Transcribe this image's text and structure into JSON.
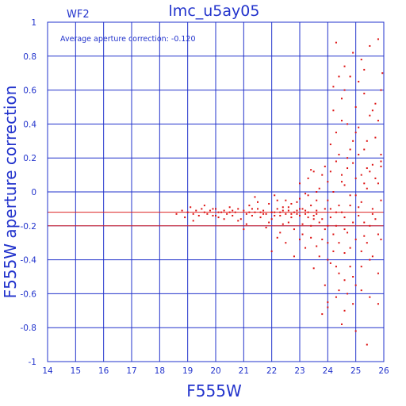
{
  "chart_data": {
    "type": "scatter",
    "title": "lmc_u5ay05",
    "chip_label": "WF2",
    "annotation": "Average aperture correction: -0.120",
    "xlabel": "F555W",
    "ylabel": "F555W aperture correction",
    "xlim": [
      14,
      26
    ],
    "ylim": [
      -1,
      1
    ],
    "xticks": [
      "14",
      "15",
      "16",
      "17",
      "18",
      "19",
      "20",
      "21",
      "22",
      "23",
      "24",
      "25",
      "26"
    ],
    "yticks": [
      "-1",
      "-0.8",
      "-0.6",
      "-0.4",
      "-0.2",
      "0",
      "0.2",
      "0.4",
      "0.6",
      "0.8",
      "1"
    ],
    "grid": true,
    "reference_lines": [
      {
        "name": "average",
        "y": -0.12,
        "color": "#dd2222"
      },
      {
        "name": "baseline",
        "y": -0.2,
        "color": "#dd2222"
      }
    ],
    "colors": {
      "axes": "#2233cc",
      "points": "#dd1111",
      "grid": "#2233cc",
      "average_line": "#dd2222"
    },
    "points": [
      [
        18.6,
        -0.13
      ],
      [
        18.8,
        -0.11
      ],
      [
        18.9,
        -0.15
      ],
      [
        19.0,
        -0.12
      ],
      [
        19.1,
        -0.09
      ],
      [
        19.2,
        -0.13
      ],
      [
        19.3,
        -0.11
      ],
      [
        19.4,
        -0.14
      ],
      [
        19.5,
        -0.1
      ],
      [
        19.6,
        -0.12
      ],
      [
        19.7,
        -0.13
      ],
      [
        19.8,
        -0.11
      ],
      [
        19.9,
        -0.14
      ],
      [
        20.0,
        -0.1
      ],
      [
        20.1,
        -0.15
      ],
      [
        20.2,
        -0.12
      ],
      [
        20.3,
        -0.11
      ],
      [
        20.4,
        -0.13
      ],
      [
        20.5,
        -0.09
      ],
      [
        20.6,
        -0.14
      ],
      [
        20.7,
        -0.12
      ],
      [
        20.8,
        -0.1
      ],
      [
        20.9,
        -0.16
      ],
      [
        21.0,
        -0.11
      ],
      [
        21.1,
        -0.13
      ],
      [
        21.2,
        -0.08
      ],
      [
        21.3,
        -0.14
      ],
      [
        21.4,
        -0.12
      ],
      [
        21.5,
        -0.1
      ],
      [
        21.6,
        -0.15
      ],
      [
        21.7,
        -0.11
      ],
      [
        21.8,
        -0.13
      ],
      [
        21.9,
        -0.07
      ],
      [
        22.0,
        -0.16
      ],
      [
        22.1,
        -0.12
      ],
      [
        22.2,
        -0.1
      ],
      [
        22.3,
        -0.14
      ],
      [
        22.4,
        -0.11
      ],
      [
        22.5,
        -0.13
      ],
      [
        22.6,
        -0.09
      ],
      [
        22.7,
        -0.15
      ],
      [
        22.8,
        -0.12
      ],
      [
        22.9,
        -0.11
      ],
      [
        23.0,
        -0.14
      ],
      [
        23.1,
        -0.1
      ],
      [
        23.2,
        -0.13
      ],
      [
        23.3,
        -0.12
      ],
      [
        23.4,
        -0.08
      ],
      [
        23.5,
        -0.16
      ],
      [
        23.6,
        -0.11
      ],
      [
        19.2,
        -0.17
      ],
      [
        19.6,
        -0.08
      ],
      [
        20.3,
        -0.16
      ],
      [
        20.8,
        -0.17
      ],
      [
        21.1,
        -0.19
      ],
      [
        21.5,
        -0.06
      ],
      [
        21.9,
        -0.18
      ],
      [
        22.2,
        -0.05
      ],
      [
        22.4,
        -0.19
      ],
      [
        22.7,
        -0.07
      ],
      [
        20.5,
        -0.12
      ],
      [
        19.9,
        -0.1
      ],
      [
        20.1,
        -0.12
      ],
      [
        21.3,
        -0.1
      ],
      [
        21.7,
        -0.13
      ],
      [
        22.0,
        -0.12
      ],
      [
        22.3,
        -0.12
      ],
      [
        22.6,
        -0.11
      ],
      [
        22.9,
        -0.13
      ],
      [
        23.2,
        -0.11
      ],
      [
        21.0,
        -0.22
      ],
      [
        21.4,
        -0.03
      ],
      [
        21.8,
        -0.21
      ],
      [
        22.1,
        -0.02
      ],
      [
        22.3,
        -0.24
      ],
      [
        22.5,
        -0.05
      ],
      [
        22.8,
        -0.22
      ],
      [
        23.0,
        -0.04
      ],
      [
        23.1,
        -0.25
      ],
      [
        23.3,
        -0.02
      ],
      [
        22.0,
        -0.35
      ],
      [
        22.2,
        -0.27
      ],
      [
        22.5,
        -0.3
      ],
      [
        22.8,
        -0.38
      ],
      [
        23.0,
        -0.28
      ],
      [
        23.2,
        -0.33
      ],
      [
        23.4,
        -0.27
      ],
      [
        23.6,
        -0.32
      ],
      [
        23.8,
        -0.28
      ],
      [
        24.0,
        -0.3
      ],
      [
        23.0,
        0.05
      ],
      [
        23.3,
        0.08
      ],
      [
        23.5,
        0.12
      ],
      [
        23.7,
        0.02
      ],
      [
        23.9,
        0.15
      ],
      [
        24.0,
        0.06
      ],
      [
        23.4,
        0.13
      ],
      [
        23.8,
        0.1
      ],
      [
        23.6,
        0.0
      ],
      [
        23.2,
        -0.01
      ],
      [
        23.5,
        -0.45
      ],
      [
        23.7,
        -0.38
      ],
      [
        23.9,
        -0.55
      ],
      [
        24.1,
        -0.42
      ],
      [
        24.0,
        -0.65
      ],
      [
        23.8,
        -0.72
      ],
      [
        24.2,
        -0.35
      ],
      [
        24.4,
        -0.48
      ],
      [
        24.6,
        -0.52
      ],
      [
        24.8,
        -0.44
      ],
      [
        24.0,
        -0.68
      ],
      [
        24.3,
        -0.62
      ],
      [
        24.6,
        -0.7
      ],
      [
        24.9,
        -0.66
      ],
      [
        25.2,
        -0.58
      ],
      [
        25.5,
        -0.62
      ],
      [
        25.8,
        -0.66
      ],
      [
        24.5,
        -0.78
      ],
      [
        25.0,
        -0.82
      ],
      [
        25.4,
        -0.9
      ],
      [
        24.1,
        0.28
      ],
      [
        24.3,
        0.35
      ],
      [
        24.5,
        0.42
      ],
      [
        24.7,
        0.2
      ],
      [
        24.9,
        0.3
      ],
      [
        25.1,
        0.38
      ],
      [
        25.3,
        0.25
      ],
      [
        25.5,
        0.45
      ],
      [
        25.7,
        0.32
      ],
      [
        25.9,
        0.22
      ],
      [
        24.2,
        0.62
      ],
      [
        24.5,
        0.55
      ],
      [
        24.8,
        0.68
      ],
      [
        25.0,
        0.5
      ],
      [
        25.3,
        0.58
      ],
      [
        25.6,
        0.48
      ],
      [
        25.9,
        0.6
      ],
      [
        24.4,
        0.68
      ],
      [
        25.1,
        0.65
      ],
      [
        25.8,
        0.42
      ],
      [
        24.6,
        0.74
      ],
      [
        25.2,
        0.78
      ],
      [
        25.5,
        0.86
      ],
      [
        25.8,
        0.9
      ],
      [
        24.9,
        0.82
      ],
      [
        24.3,
        0.88
      ],
      [
        25.95,
        0.7
      ],
      [
        25.4,
        0.14
      ],
      [
        25.6,
        0.16
      ],
      [
        25.2,
        0.1
      ],
      [
        24.0,
        -0.05
      ],
      [
        24.2,
        0.0
      ],
      [
        24.4,
        -0.08
      ],
      [
        24.6,
        0.04
      ],
      [
        24.8,
        -0.02
      ],
      [
        25.0,
        0.08
      ],
      [
        25.2,
        -0.06
      ],
      [
        25.4,
        0.02
      ],
      [
        25.6,
        -0.1
      ],
      [
        25.8,
        0.05
      ],
      [
        24.1,
        -0.15
      ],
      [
        24.3,
        -0.2
      ],
      [
        24.5,
        -0.12
      ],
      [
        24.7,
        -0.24
      ],
      [
        24.9,
        -0.18
      ],
      [
        25.1,
        -0.14
      ],
      [
        25.3,
        -0.26
      ],
      [
        25.5,
        -0.2
      ],
      [
        25.7,
        -0.16
      ],
      [
        25.9,
        -0.28
      ],
      [
        24.2,
        -0.25
      ],
      [
        24.4,
        -0.3
      ],
      [
        24.6,
        -0.22
      ],
      [
        24.8,
        -0.33
      ],
      [
        25.0,
        -0.28
      ],
      [
        25.2,
        -0.35
      ],
      [
        25.4,
        -0.3
      ],
      [
        25.6,
        -0.38
      ],
      [
        25.8,
        -0.25
      ],
      [
        24.0,
        -0.2
      ],
      [
        24.1,
        0.12
      ],
      [
        24.3,
        0.18
      ],
      [
        24.5,
        0.1
      ],
      [
        24.7,
        0.14
      ],
      [
        24.9,
        0.17
      ],
      [
        25.1,
        0.22
      ],
      [
        25.3,
        0.05
      ],
      [
        25.5,
        0.12
      ],
      [
        25.7,
        0.08
      ],
      [
        25.9,
        0.15
      ],
      [
        24.0,
        -0.4
      ],
      [
        24.3,
        -0.44
      ],
      [
        24.6,
        -0.36
      ],
      [
        24.9,
        -0.5
      ],
      [
        25.2,
        -0.44
      ],
      [
        25.5,
        -0.4
      ],
      [
        25.8,
        -0.48
      ],
      [
        24.4,
        -0.58
      ],
      [
        24.7,
        -0.6
      ],
      [
        25.0,
        -0.55
      ],
      [
        22.6,
        -0.18
      ],
      [
        22.9,
        -0.06
      ],
      [
        23.1,
        -0.19
      ],
      [
        23.4,
        -0.2
      ],
      [
        23.6,
        -0.05
      ],
      [
        23.7,
        -0.18
      ],
      [
        23.9,
        -0.1
      ],
      [
        23.9,
        -0.22
      ],
      [
        23.5,
        -0.14
      ],
      [
        23.8,
        -0.16
      ],
      [
        20.0,
        -0.14
      ],
      [
        20.6,
        -0.11
      ],
      [
        21.2,
        -0.12
      ],
      [
        21.6,
        -0.12
      ],
      [
        22.1,
        -0.14
      ],
      [
        22.4,
        -0.09
      ],
      [
        22.7,
        -0.13
      ],
      [
        23.0,
        -0.1
      ],
      [
        23.3,
        -0.15
      ],
      [
        23.6,
        -0.13
      ],
      [
        24.2,
        0.48
      ],
      [
        24.7,
        0.4
      ],
      [
        25.0,
        0.35
      ],
      [
        25.4,
        0.3
      ],
      [
        25.7,
        0.52
      ],
      [
        24.6,
        0.6
      ],
      [
        25.3,
        0.72
      ],
      [
        24.8,
        0.25
      ],
      [
        24.4,
        0.22
      ],
      [
        25.9,
        0.18
      ],
      [
        24.1,
        -0.1
      ],
      [
        24.6,
        -0.15
      ],
      [
        25.1,
        -0.09
      ],
      [
        25.6,
        -0.13
      ],
      [
        25.3,
        -0.18
      ],
      [
        24.8,
        -0.08
      ],
      [
        24.3,
        -0.12
      ],
      [
        25.9,
        -0.05
      ],
      [
        24.5,
        0.06
      ],
      [
        25.0,
        -0.02
      ]
    ]
  }
}
